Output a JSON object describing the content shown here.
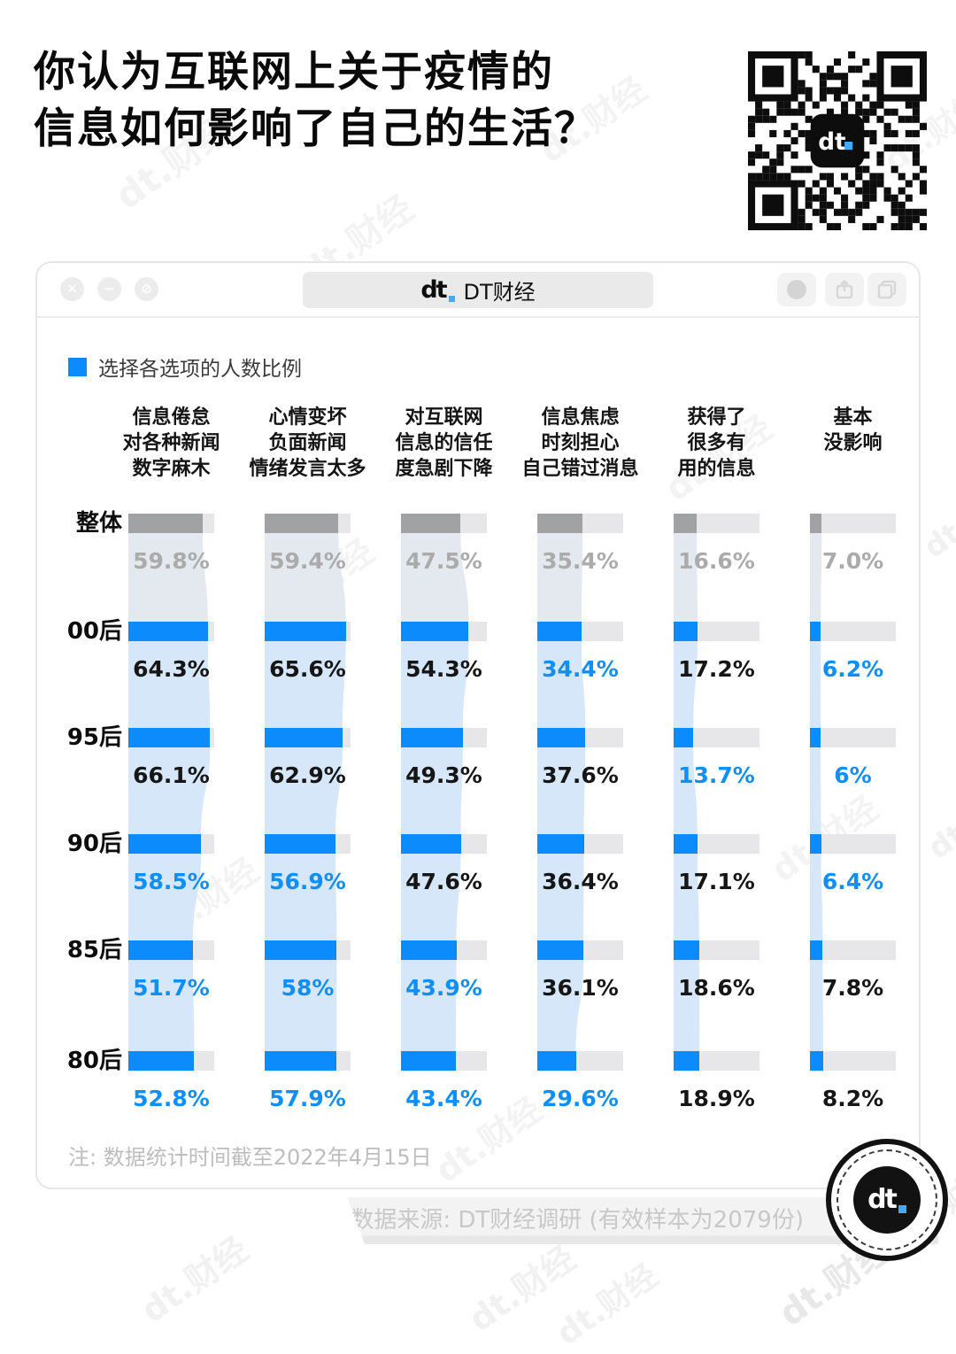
{
  "header": {
    "title_lines": [
      "你认为互联网上关于疫情的",
      "信息如何影响了自己的生活？"
    ]
  },
  "watermark": "dt.财经",
  "qr": {
    "center_logo_text": "dt"
  },
  "window": {
    "controls_left": [
      "close",
      "minimize",
      "block"
    ],
    "tab": {
      "logo_text": "dt",
      "title": "DT财经"
    },
    "controls_right": [
      "profile",
      "share",
      "tabs"
    ],
    "legend": "选择各选项的人数比例",
    "note": "注: 数据统计时间截至2022年4月15日",
    "source": "数据来源: DT财经调研 (有效样本为2079份)"
  },
  "badge": {
    "logo_text": "dt"
  },
  "chart_data": {
    "type": "bar",
    "title": "选择各选项的人数比例",
    "orientation": "horizontal segmented bars with flow bands",
    "unit": "%",
    "xlim": [
      0,
      100
    ],
    "legend_position": "top-left",
    "columns": [
      {
        "lines": [
          "信息倦怠",
          "对各种新闻",
          "数字麻木"
        ]
      },
      {
        "lines": [
          "心情变坏",
          "负面新闻",
          "情绪发言太多"
        ]
      },
      {
        "lines": [
          "对互联网",
          "信息的信任",
          "度急剧下降"
        ]
      },
      {
        "lines": [
          "信息焦虑",
          "时刻担心",
          "自己错过消息"
        ]
      },
      {
        "lines": [
          "获得了",
          "很多有",
          "用的信息"
        ]
      },
      {
        "lines": [
          "基本",
          "没影响"
        ]
      }
    ],
    "rows": [
      {
        "label": "整体",
        "tone": "gray",
        "values": [
          {
            "v": 59.8,
            "display": "59.8%",
            "emphasis": "gray"
          },
          {
            "v": 59.4,
            "display": "59.4%",
            "emphasis": "gray"
          },
          {
            "v": 47.5,
            "display": "47.5%",
            "emphasis": "gray"
          },
          {
            "v": 35.4,
            "display": "35.4%",
            "emphasis": "gray"
          },
          {
            "v": 16.6,
            "display": "16.6%",
            "emphasis": "gray"
          },
          {
            "v": 7.0,
            "display": "7.0%",
            "emphasis": "gray"
          }
        ]
      },
      {
        "label": "00后",
        "tone": "blue",
        "values": [
          {
            "v": 64.3,
            "display": "64.3%",
            "emphasis": "black"
          },
          {
            "v": 65.6,
            "display": "65.6%",
            "emphasis": "black"
          },
          {
            "v": 54.3,
            "display": "54.3%",
            "emphasis": "black"
          },
          {
            "v": 34.4,
            "display": "34.4%",
            "emphasis": "blue"
          },
          {
            "v": 17.2,
            "display": "17.2%",
            "emphasis": "black"
          },
          {
            "v": 6.2,
            "display": "6.2%",
            "emphasis": "blue"
          }
        ]
      },
      {
        "label": "95后",
        "tone": "blue",
        "values": [
          {
            "v": 66.1,
            "display": "66.1%",
            "emphasis": "black"
          },
          {
            "v": 62.9,
            "display": "62.9%",
            "emphasis": "black"
          },
          {
            "v": 49.3,
            "display": "49.3%",
            "emphasis": "black"
          },
          {
            "v": 37.6,
            "display": "37.6%",
            "emphasis": "black"
          },
          {
            "v": 13.7,
            "display": "13.7%",
            "emphasis": "blue"
          },
          {
            "v": 6,
            "display": "6%",
            "emphasis": "blue"
          }
        ]
      },
      {
        "label": "90后",
        "tone": "blue",
        "values": [
          {
            "v": 58.5,
            "display": "58.5%",
            "emphasis": "blue"
          },
          {
            "v": 56.9,
            "display": "56.9%",
            "emphasis": "blue"
          },
          {
            "v": 47.6,
            "display": "47.6%",
            "emphasis": "black"
          },
          {
            "v": 36.4,
            "display": "36.4%",
            "emphasis": "black"
          },
          {
            "v": 17.1,
            "display": "17.1%",
            "emphasis": "black"
          },
          {
            "v": 6.4,
            "display": "6.4%",
            "emphasis": "blue"
          }
        ]
      },
      {
        "label": "85后",
        "tone": "blue",
        "values": [
          {
            "v": 51.7,
            "display": "51.7%",
            "emphasis": "blue"
          },
          {
            "v": 58,
            "display": "58%",
            "emphasis": "blue"
          },
          {
            "v": 43.9,
            "display": "43.9%",
            "emphasis": "blue"
          },
          {
            "v": 36.1,
            "display": "36.1%",
            "emphasis": "black"
          },
          {
            "v": 18.6,
            "display": "18.6%",
            "emphasis": "black"
          },
          {
            "v": 7.8,
            "display": "7.8%",
            "emphasis": "black"
          }
        ]
      },
      {
        "label": "80后",
        "tone": "blue",
        "values": [
          {
            "v": 52.8,
            "display": "52.8%",
            "emphasis": "blue"
          },
          {
            "v": 57.9,
            "display": "57.9%",
            "emphasis": "blue"
          },
          {
            "v": 43.4,
            "display": "43.4%",
            "emphasis": "blue"
          },
          {
            "v": 29.6,
            "display": "29.6%",
            "emphasis": "blue"
          },
          {
            "v": 18.9,
            "display": "18.9%",
            "emphasis": "black"
          },
          {
            "v": 8.2,
            "display": "8.2%",
            "emphasis": "black"
          }
        ]
      }
    ],
    "colors": {
      "bar_fill_blue": "#0C8CFC",
      "bar_fill_gray": "#A0A2A4",
      "bar_track": "#E7E7E9",
      "label_blue": "#0E8FFB",
      "label_black": "#161616",
      "label_gray": "#ABABAB",
      "flow_band_blue": "#D5E7F8",
      "flow_band_gray": "#E3E9EF"
    }
  }
}
